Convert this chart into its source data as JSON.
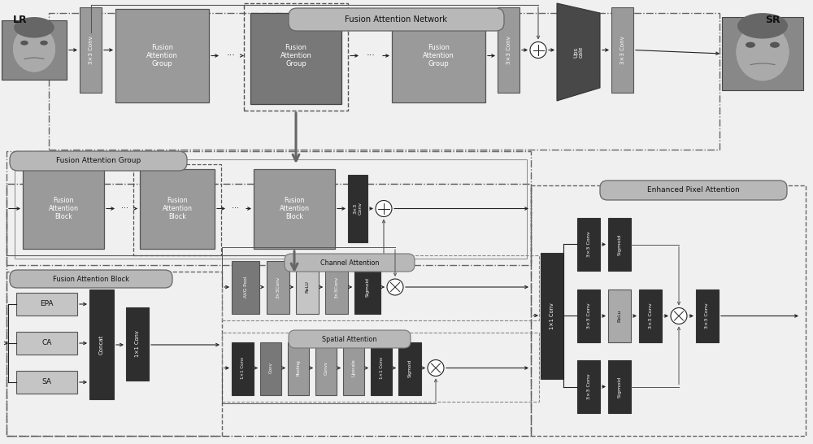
{
  "bg": "#f0f0f0",
  "lg": "#9a9a9a",
  "mg": "#787878",
  "dg": "#2e2e2e",
  "vlg": "#c5c5c5",
  "lbg": "#b8b8b8",
  "relu_col": "#aaaaaa",
  "dark": "#111111",
  "white": "#ffffff",
  "ac": "#222222",
  "border_col": "#555555",
  "fan_label": "Fusion Attention Network",
  "fag_label": "Fusion Attention Group",
  "fab_label": "Fusion Attention Block",
  "ca_label": "Channel Attention",
  "sa_label": "Spatial Attention",
  "epa_label": "Enhanced Pixel Attention",
  "lr_label": "LR",
  "sr_label": "SR",
  "fag_text": "Fusion\nAttention\nGroup",
  "fab_text": "Fusion\nAttention\nBlock",
  "conv33": "3×3 Conv",
  "conv11": "1×1 Conv",
  "conv33s": "3×3Conv",
  "avgpool": "AVG Pool",
  "relu": "ReLU",
  "relum": "ReLu",
  "sigmoid": "Sigmoid",
  "concat": "Concat",
  "upscale": "Upscale",
  "upscale2": "Ups\ncale",
  "pooling": "Pooling",
  "convs": "Convs",
  "conv": "Conv",
  "epa_s": "EPA",
  "ca_s": "CA",
  "sa_s": "SA"
}
